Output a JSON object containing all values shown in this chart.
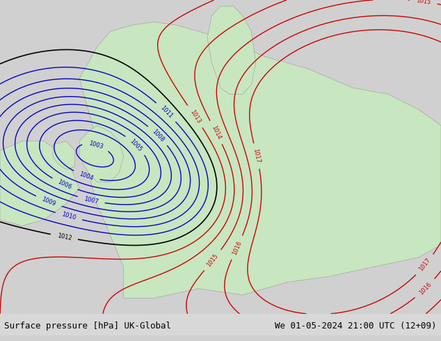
{
  "title_left": "Surface pressure [hPa] UK-Global",
  "title_right": "We 01-05-2024 21:00 UTC (12+09)",
  "bg_color_main": "#c8e6c0",
  "bg_color_sea": "#b0d0e8",
  "fig_width": 6.34,
  "fig_height": 4.9,
  "bottom_bar_color": "#d8d8d8",
  "text_color": "#000000",
  "contour_color_blue": "#0000cc",
  "contour_color_red": "#cc0000",
  "contour_color_black": "#000000",
  "font_size_bottom": 9,
  "font_family": "monospace"
}
